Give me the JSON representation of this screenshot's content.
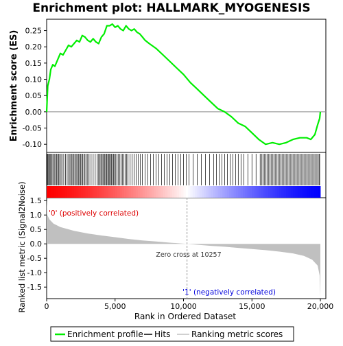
{
  "chart_data": {
    "type": "line",
    "title": "Enrichment plot: HALLMARK_MYOGENESIS",
    "es_panel": {
      "ylabel": "Enrichment score (ES)",
      "ylim": [
        -0.125,
        0.285
      ],
      "yticks": [
        0.25,
        0.2,
        0.15,
        0.1,
        0.05,
        0.0,
        -0.05,
        -0.1
      ],
      "ytick_labels": [
        "0.25",
        "0.20",
        "0.15",
        "0.10",
        "0.05",
        "0.00",
        "-0.05",
        "-0.10"
      ],
      "zero_line": true,
      "series": [
        {
          "name": "Enrichment profile",
          "color": "#00ee00",
          "points": [
            [
              0,
              0.0
            ],
            [
              30,
              0.03
            ],
            [
              80,
              0.08
            ],
            [
              200,
              0.1
            ],
            [
              300,
              0.13
            ],
            [
              450,
              0.145
            ],
            [
              600,
              0.14
            ],
            [
              800,
              0.16
            ],
            [
              1000,
              0.18
            ],
            [
              1200,
              0.175
            ],
            [
              1400,
              0.19
            ],
            [
              1600,
              0.205
            ],
            [
              1800,
              0.2
            ],
            [
              2000,
              0.21
            ],
            [
              2200,
              0.22
            ],
            [
              2400,
              0.215
            ],
            [
              2600,
              0.235
            ],
            [
              2800,
              0.23
            ],
            [
              3000,
              0.22
            ],
            [
              3200,
              0.215
            ],
            [
              3400,
              0.225
            ],
            [
              3600,
              0.215
            ],
            [
              3800,
              0.21
            ],
            [
              4000,
              0.23
            ],
            [
              4200,
              0.24
            ],
            [
              4400,
              0.265
            ],
            [
              4600,
              0.265
            ],
            [
              4800,
              0.27
            ],
            [
              5000,
              0.26
            ],
            [
              5200,
              0.265
            ],
            [
              5400,
              0.255
            ],
            [
              5600,
              0.25
            ],
            [
              5800,
              0.265
            ],
            [
              6000,
              0.255
            ],
            [
              6200,
              0.25
            ],
            [
              6400,
              0.255
            ],
            [
              6600,
              0.245
            ],
            [
              6800,
              0.24
            ],
            [
              7000,
              0.23
            ],
            [
              7200,
              0.22
            ],
            [
              7500,
              0.21
            ],
            [
              8000,
              0.195
            ],
            [
              8500,
              0.175
            ],
            [
              9000,
              0.155
            ],
            [
              9500,
              0.135
            ],
            [
              10000,
              0.115
            ],
            [
              10500,
              0.09
            ],
            [
              11000,
              0.07
            ],
            [
              11500,
              0.05
            ],
            [
              12000,
              0.03
            ],
            [
              12500,
              0.01
            ],
            [
              13000,
              0.0
            ],
            [
              13500,
              -0.015
            ],
            [
              14000,
              -0.035
            ],
            [
              14500,
              -0.045
            ],
            [
              15000,
              -0.065
            ],
            [
              15500,
              -0.085
            ],
            [
              16000,
              -0.1
            ],
            [
              16500,
              -0.095
            ],
            [
              17000,
              -0.1
            ],
            [
              17500,
              -0.095
            ],
            [
              18000,
              -0.085
            ],
            [
              18500,
              -0.08
            ],
            [
              19000,
              -0.08
            ],
            [
              19300,
              -0.085
            ],
            [
              19600,
              -0.07
            ],
            [
              19800,
              -0.04
            ],
            [
              19950,
              -0.02
            ],
            [
              20000,
              0.0
            ]
          ]
        }
      ]
    },
    "hits_panel": {
      "legend_name": "Hits",
      "hit_ranks": [
        10,
        40,
        90,
        150,
        200,
        260,
        320,
        400,
        480,
        560,
        650,
        720,
        800,
        870,
        950,
        1050,
        1130,
        1250,
        1380,
        1500,
        1600,
        1700,
        1780,
        1850,
        1920,
        2000,
        2080,
        2160,
        2240,
        2320,
        2400,
        2480,
        2560,
        2640,
        2720,
        2800,
        2900,
        3000,
        3100,
        3250,
        3400,
        3550,
        3700,
        3800,
        3880,
        3960,
        4040,
        4110,
        4180,
        4250,
        4320,
        4390,
        4460,
        4530,
        4600,
        4670,
        4740,
        4810,
        4880,
        4950,
        5050,
        5150,
        5250,
        5350,
        5450,
        5550,
        5650,
        5750,
        5850,
        5950,
        6100,
        6250,
        6400,
        6550,
        6700,
        6850,
        7000,
        7200,
        7400,
        7600,
        7800,
        8000,
        8200,
        8400,
        8600,
        8800,
        9000,
        9200,
        9400,
        9600,
        9800,
        10000,
        10200,
        10400,
        10700,
        11000,
        11300,
        11600,
        11900,
        12200,
        12400,
        12600,
        12800,
        13000,
        13200,
        13400,
        13600,
        13800,
        14000,
        14200,
        14400,
        14700,
        15000,
        15300,
        15600,
        15700,
        15800,
        15900,
        16000,
        16100,
        16200,
        16300,
        16400,
        16500,
        16600,
        16700,
        16800,
        16900,
        17000,
        17100,
        17200,
        17300,
        17400,
        17500,
        17600,
        17700,
        17800,
        17900,
        18000,
        18100,
        18200,
        18300,
        18400,
        18500,
        18600,
        18700,
        18800,
        18900,
        19000,
        19100,
        19200,
        19300,
        19400,
        19500,
        19600,
        19700,
        19800,
        19900,
        19950
      ]
    },
    "metric_panel": {
      "ylabel": "Ranked list metric (Signal2Noise)",
      "ylim": [
        -1.9,
        1.6
      ],
      "yticks": [
        1.5,
        1.0,
        0.5,
        0.0,
        -0.5,
        -1.0,
        -1.5
      ],
      "ytick_labels": [
        "1.5",
        "1.0",
        "0.5",
        "0.0",
        "-0.5",
        "-1.0",
        "-1.5"
      ],
      "legend_name": "Ranking metric scores",
      "fill_color": "#c0c0c0",
      "metric_points": [
        [
          0,
          1.55
        ],
        [
          50,
          1.0
        ],
        [
          200,
          0.85
        ],
        [
          500,
          0.7
        ],
        [
          1000,
          0.58
        ],
        [
          2000,
          0.45
        ],
        [
          3000,
          0.36
        ],
        [
          4000,
          0.29
        ],
        [
          5000,
          0.23
        ],
        [
          6000,
          0.17
        ],
        [
          7000,
          0.12
        ],
        [
          8000,
          0.08
        ],
        [
          9000,
          0.04
        ],
        [
          10257,
          0.0
        ],
        [
          11000,
          -0.03
        ],
        [
          12000,
          -0.07
        ],
        [
          13000,
          -0.1
        ],
        [
          14000,
          -0.14
        ],
        [
          15000,
          -0.18
        ],
        [
          16000,
          -0.22
        ],
        [
          17000,
          -0.27
        ],
        [
          18000,
          -0.33
        ],
        [
          18800,
          -0.42
        ],
        [
          19400,
          -0.55
        ],
        [
          19800,
          -0.75
        ],
        [
          19950,
          -1.1
        ],
        [
          20000,
          -1.85
        ]
      ],
      "zero_cross_rank": 10257,
      "zero_cross_label": "Zero cross at 10257",
      "pos_label": "'0' (positively correlated)",
      "neg_label": "'1' (negatively correlated)",
      "pos_label_color": "#dd0000",
      "neg_label_color": "#0000dd"
    },
    "x_axis": {
      "xlabel": "Rank in Ordered Dataset",
      "xlim": [
        0,
        20400
      ],
      "xticks": [
        0,
        5000,
        10000,
        15000,
        20000
      ],
      "xtick_labels": [
        "0",
        "5,000",
        "10,000",
        "15,000",
        "20,000"
      ],
      "n_genes": 20000
    },
    "heatbar": {
      "left_color": "#ff0000",
      "mid_color": "#ffffff",
      "right_color": "#0000ff"
    },
    "legend": {
      "items": [
        {
          "label": "Enrichment profile",
          "color": "#00ee00"
        },
        {
          "label": "Hits",
          "color": "#000000"
        },
        {
          "label": "Ranking metric scores",
          "color": "#c0c0c0"
        }
      ]
    }
  }
}
